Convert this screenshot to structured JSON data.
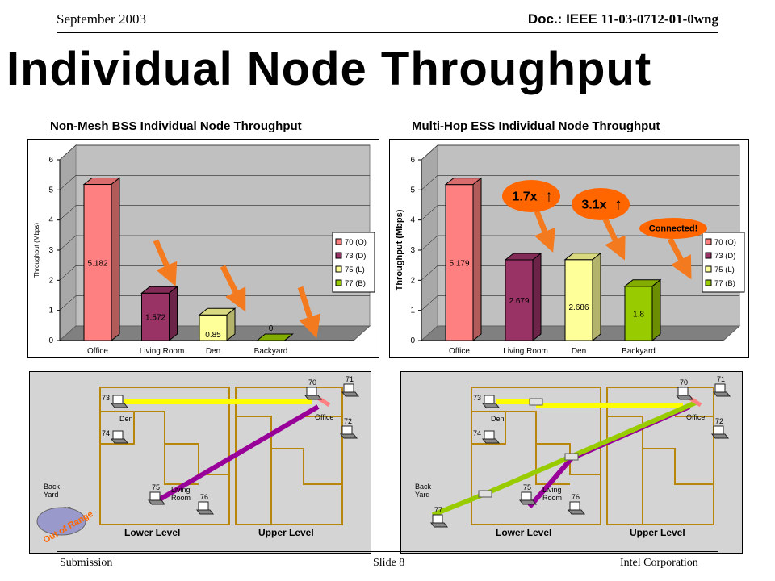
{
  "header": {
    "date": "September 2003",
    "doc_prefix": "Doc.: IEEE",
    "doc_number": "11-03-0712-01-0wng"
  },
  "title": "Individual Node Throughput",
  "left_chart_title": "Non-Mesh BSS Individual Node Throughput",
  "right_chart_title": "Multi-Hop ESS Individual Node Throughput",
  "legend": [
    "70 (O)",
    "73 (D)",
    "75 (L)",
    "77 (B)"
  ],
  "colors": {
    "office": "#ff8080",
    "living": "#993366",
    "den": "#ffff99",
    "backyard": "#99cc00",
    "arrow": "#f47a20",
    "badge": "#ff6600"
  },
  "chart_data": [
    {
      "type": "bar",
      "title": "Non-Mesh BSS Individual Node Throughput",
      "categories": [
        "Office",
        "Living Room",
        "Den",
        "Backyard"
      ],
      "values": [
        5.182,
        1.572,
        0.85,
        0
      ],
      "value_labels": [
        "5.182",
        "1.572",
        "0.85",
        "0"
      ],
      "ylabel": "Throughput (Mbps)",
      "ylim": [
        0,
        6
      ],
      "yticks": [
        "0",
        "1",
        "2",
        "3",
        "4",
        "5",
        "6"
      ],
      "legend": "right"
    },
    {
      "type": "bar",
      "title": "Multi-Hop ESS Individual Node Throughput",
      "categories": [
        "Office",
        "Living Room",
        "Den",
        "Backyard"
      ],
      "values": [
        5.179,
        2.679,
        2.686,
        1.8
      ],
      "value_labels": [
        "5.179",
        "2.679",
        "2.686",
        "1.8"
      ],
      "ylabel": "Throughput (Mbps)",
      "ylim": [
        0,
        6
      ],
      "yticks": [
        "0",
        "1",
        "2",
        "3",
        "4",
        "5",
        "6"
      ],
      "legend": "right"
    }
  ],
  "annotations": {
    "badge1": "1.7x",
    "badge2": "3.1x",
    "connected": "Connected!"
  },
  "floorplan": {
    "nodes": [
      "70",
      "71",
      "72",
      "73",
      "74",
      "75",
      "76",
      "77"
    ],
    "room_den": "Den",
    "room_office": "Office",
    "room_living": "Living\nRoom",
    "room_backyard": "Back\nYard",
    "lower": "Lower Level",
    "upper": "Upper Level",
    "out_of_range": "Out of Range"
  },
  "footer": {
    "left": "Submission",
    "center": "Slide 8",
    "right": "Intel Corporation"
  }
}
